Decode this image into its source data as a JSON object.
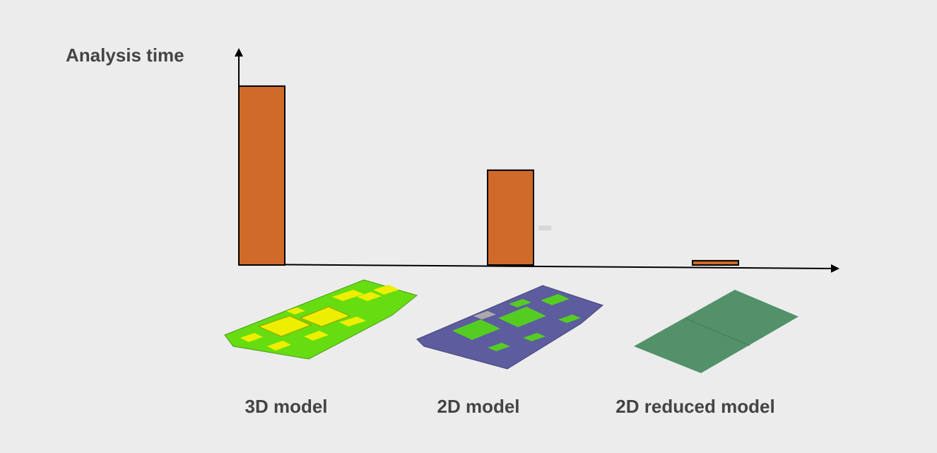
{
  "chart_data": {
    "type": "bar",
    "y_label": "Analysis time",
    "categories": [
      "3D model",
      "2D model",
      "2D reduced model"
    ],
    "values": [
      83,
      44,
      2
    ],
    "color": "#d06a2a",
    "ylim": [
      0,
      100
    ]
  }
}
